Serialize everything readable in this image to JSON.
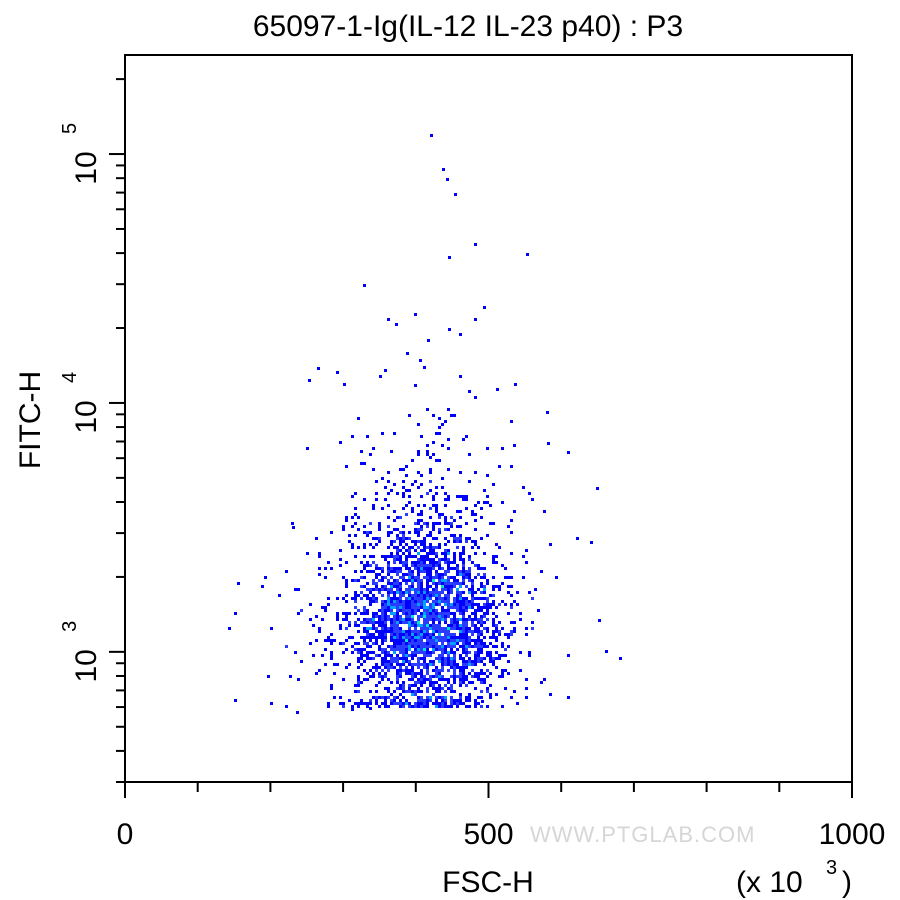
{
  "chart_data": {
    "type": "scatter",
    "title": "65097-1-Ig(IL-12 IL-23 p40) : P3",
    "xlabel": "FSC-H",
    "ylabel": "FITC-H",
    "x_multiplier": "(x 10",
    "x_multiplier_exp": "3",
    "x_multiplier_close": ")",
    "xlim": [
      0,
      1000
    ],
    "ylim": [
      300,
      250000
    ],
    "yscale": "log",
    "x_ticks": [
      0,
      500,
      1000
    ],
    "x_tick_labels": [
      "0",
      "500",
      "1000"
    ],
    "y_ticks": [
      1000,
      10000,
      100000
    ],
    "y_tick_labels": [
      {
        "base": "10",
        "exp": "3"
      },
      {
        "base": "10",
        "exp": "4"
      },
      {
        "base": "10",
        "exp": "5"
      }
    ],
    "grid": false,
    "density_colors": [
      "#0000ff",
      "#2a3cff",
      "#00a0ff",
      "#00e6c8",
      "#64ff64"
    ],
    "population": {
      "center_x": 410,
      "center_log10_y": 3.1,
      "spread_x": 52,
      "spread_log10_y": 0.18,
      "events": 3200
    },
    "outliers": [
      {
        "x": 420,
        "y": 120000
      },
      {
        "x": 436,
        "y": 88000
      },
      {
        "x": 442,
        "y": 80000
      },
      {
        "x": 453,
        "y": 70000
      },
      {
        "x": 480,
        "y": 44000
      },
      {
        "x": 552,
        "y": 40000
      },
      {
        "x": 444,
        "y": 39000
      },
      {
        "x": 327,
        "y": 30000
      },
      {
        "x": 398,
        "y": 23000
      },
      {
        "x": 371,
        "y": 21000
      },
      {
        "x": 444,
        "y": 20000
      },
      {
        "x": 415,
        "y": 18000
      },
      {
        "x": 387,
        "y": 16000
      },
      {
        "x": 405,
        "y": 15000
      },
      {
        "x": 264,
        "y": 14000
      },
      {
        "x": 290,
        "y": 13500
      },
      {
        "x": 350,
        "y": 13000
      },
      {
        "x": 460,
        "y": 13000
      },
      {
        "x": 252,
        "y": 12500
      },
      {
        "x": 535,
        "y": 12000
      },
      {
        "x": 300,
        "y": 12000
      },
      {
        "x": 510,
        "y": 11500
      },
      {
        "x": 680,
        "y": 950
      },
      {
        "x": 660,
        "y": 1020
      },
      {
        "x": 650,
        "y": 1350
      },
      {
        "x": 640,
        "y": 2800
      },
      {
        "x": 648,
        "y": 4600
      },
      {
        "x": 608,
        "y": 6400
      },
      {
        "x": 580,
        "y": 7000
      },
      {
        "x": 235,
        "y": 580
      },
      {
        "x": 225,
        "y": 810
      },
      {
        "x": 210,
        "y": 1700
      },
      {
        "x": 230,
        "y": 3200
      },
      {
        "x": 335,
        "y": 600
      },
      {
        "x": 490,
        "y": 640
      }
    ]
  },
  "watermark": "WWW.PTGLAB.COM"
}
